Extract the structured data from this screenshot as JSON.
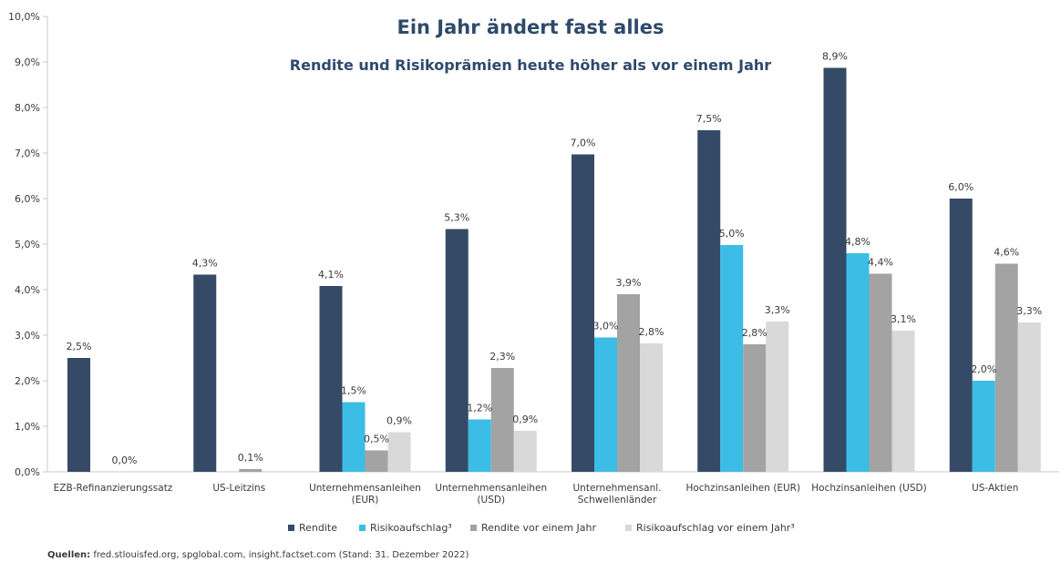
{
  "chart_data": {
    "type": "bar",
    "title": "Ein Jahr ändert fast alles",
    "subtitle": "Rendite und Risikoprämien heute höher als vor einem Jahr",
    "categories": [
      [
        "EZB-Refinanzierungssatz"
      ],
      [
        "US-Leitzins"
      ],
      [
        "Unternehmensanleihen",
        "(EUR)"
      ],
      [
        "Unternehmensanleihen",
        "(USD)"
      ],
      [
        "Unternehmensanl.",
        "Schwellenländer"
      ],
      [
        "Hochzinsanleihen (EUR)"
      ],
      [
        "Hochzinsanleihen (USD)"
      ],
      [
        "US-Aktien"
      ]
    ],
    "series": [
      {
        "name": "Rendite",
        "color": "#354a66",
        "values": [
          2.5,
          4.33,
          4.08,
          5.33,
          6.97,
          7.5,
          8.87,
          6.0
        ],
        "labels": [
          "2,5%",
          "4,3%",
          "4,1%",
          "5,3%",
          "7,0%",
          "7,5%",
          "8,9%",
          "6,0%"
        ]
      },
      {
        "name": "Risikoaufschlag³",
        "color": "#3cbde6",
        "values": [
          null,
          null,
          1.53,
          1.15,
          2.95,
          4.98,
          4.8,
          2.0
        ],
        "labels": [
          "",
          "",
          "1,5%",
          "1,2%",
          "3,0%",
          "5,0%",
          "4,8%",
          "2,0%"
        ]
      },
      {
        "name": "Rendite vor einem Jahr",
        "color": "#a3a3a3",
        "values": [
          0.0,
          0.06,
          0.47,
          2.28,
          3.9,
          2.8,
          4.35,
          4.57
        ],
        "labels": [
          "0,0%",
          "0,1%",
          "0,5%",
          "2,3%",
          "3,9%",
          "2,8%",
          "4,4%",
          "4,6%"
        ]
      },
      {
        "name": "Risikoaufschlag vor einem Jahr³",
        "color": "#d9d9d9",
        "values": [
          null,
          null,
          0.87,
          0.9,
          2.82,
          3.3,
          3.1,
          3.28
        ],
        "labels": [
          "",
          "",
          "0,9%",
          "0,9%",
          "2,8%",
          "3,3%",
          "3,1%",
          "3,3%"
        ]
      }
    ],
    "ylim": [
      0,
      10
    ],
    "yticks": [
      "0,0%",
      "1,0%",
      "2,0%",
      "3,0%",
      "4,0%",
      "5,0%",
      "6,0%",
      "7,0%",
      "8,0%",
      "9,0%",
      "10,0%"
    ],
    "grid": false,
    "legend_position": "bottom"
  },
  "source": {
    "label": "Quellen:",
    "text": " fred.stlouisfed.org, spglobal.com, insight.factset.com (Stand: 31. Dezember 2022)"
  }
}
